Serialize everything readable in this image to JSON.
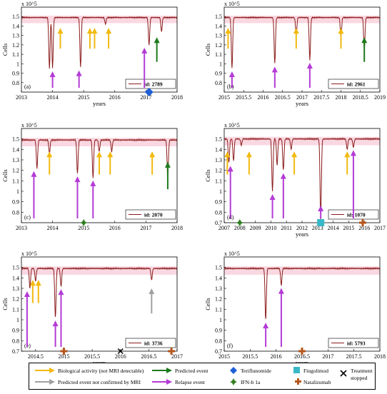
{
  "chart_data": [
    {
      "type": "line",
      "panel_label": "(a)",
      "id_label": "id: 2789",
      "xlabel": "years",
      "ylabel": "Cells",
      "exponent": "x 10^5",
      "xlim": [
        2013,
        2018
      ],
      "ylim": [
        0.7,
        1.6
      ],
      "xticks": [
        2013,
        2014,
        2015,
        2016,
        2017,
        2018
      ],
      "yticks": [
        0.8,
        0.9,
        1.0,
        1.1,
        1.2,
        1.3,
        1.4,
        1.5
      ],
      "baseline": 1.49,
      "dips": [
        [
          2013.9,
          0.95
        ],
        [
          2014.0,
          0.96
        ],
        [
          2014.9,
          0.96
        ],
        [
          2015.7,
          1.42
        ],
        [
          2017.1,
          1.2
        ],
        [
          2017.5,
          1.34
        ]
      ],
      "arrows": [
        {
          "type": "biological",
          "x": 2014.25
        },
        {
          "type": "biological",
          "x": 2015.2
        },
        {
          "type": "biological",
          "x": 2015.35
        },
        {
          "type": "biological",
          "x": 2015.8
        },
        {
          "type": "relapse",
          "x": 2014.0
        },
        {
          "type": "relapse",
          "x": 2014.85
        },
        {
          "type": "relapse",
          "x": 2016.95
        },
        {
          "type": "predicted",
          "x": 2017.35
        }
      ],
      "treatments": [
        {
          "type": "teriflunomide",
          "x": 2017.1
        }
      ]
    },
    {
      "type": "line",
      "panel_label": "(b)",
      "id_label": "id: 2961",
      "xlabel": "years",
      "ylabel": "Cells",
      "exponent": "x 10^5",
      "xlim": [
        2015,
        2019
      ],
      "ylim": [
        0.7,
        1.6
      ],
      "xticks": [
        2015,
        2015.5,
        2016,
        2016.5,
        2017,
        2017.5,
        2018,
        2018.5,
        2019
      ],
      "yticks": [
        0.8,
        0.9,
        1.0,
        1.1,
        1.2,
        1.3,
        1.4,
        1.5
      ],
      "baseline": 1.49,
      "dips": [
        [
          2015.2,
          0.95
        ],
        [
          2016.3,
          1.0
        ],
        [
          2016.85,
          1.3
        ],
        [
          2017.2,
          1.04
        ],
        [
          2018.0,
          1.27
        ],
        [
          2018.6,
          1.14
        ]
      ],
      "arrows": [
        {
          "type": "biological",
          "x": 2015.1
        },
        {
          "type": "biological",
          "x": 2016.85
        },
        {
          "type": "biological",
          "x": 2018.0
        },
        {
          "type": "relapse",
          "x": 2015.2
        },
        {
          "type": "relapse",
          "x": 2016.3
        },
        {
          "type": "relapse",
          "x": 2017.2
        },
        {
          "type": "predicted",
          "x": 2018.6
        }
      ],
      "treatments": []
    },
    {
      "type": "line",
      "panel_label": "(c)",
      "id_label": "id: 2070",
      "xlabel": "",
      "ylabel": "Cells",
      "exponent": "x 10^5",
      "xlim": [
        2013,
        2018
      ],
      "ylim": [
        0.7,
        1.6
      ],
      "xticks": [
        2013,
        2014,
        2015,
        2016,
        2017,
        2018
      ],
      "yticks": [
        0.8,
        0.9,
        1.0,
        1.1,
        1.2,
        1.3,
        1.4,
        1.5
      ],
      "baseline": 1.49,
      "dips": [
        [
          2013.5,
          1.22
        ],
        [
          2013.9,
          1.36
        ],
        [
          2014.8,
          1.17
        ],
        [
          2015.3,
          1.13
        ],
        [
          2015.5,
          1.38
        ],
        [
          2015.9,
          1.38
        ],
        [
          2017.7,
          1.13
        ]
      ],
      "arrows": [
        {
          "type": "biological",
          "x": 2013.9
        },
        {
          "type": "biological",
          "x": 2015.5
        },
        {
          "type": "biological",
          "x": 2015.85
        },
        {
          "type": "biological",
          "x": 2017.2
        },
        {
          "type": "relapse",
          "x": 2013.4
        },
        {
          "type": "relapse",
          "x": 2014.8
        },
        {
          "type": "relapse",
          "x": 2015.3
        },
        {
          "type": "predicted",
          "x": 2017.7
        }
      ],
      "treatments": [
        {
          "type": "ifn",
          "x": 2015.0
        }
      ]
    },
    {
      "type": "line",
      "panel_label": "(d)",
      "id_label": "id: 1070",
      "xlabel": "years",
      "ylabel": "Cells",
      "exponent": "x 10^5",
      "xlim": [
        2007,
        2017
      ],
      "ylim": [
        0.7,
        1.6
      ],
      "xticks": [
        2007,
        2008,
        2009,
        2010,
        2011,
        2012,
        2013,
        2014,
        2015,
        2016,
        2017
      ],
      "yticks": [
        0.7,
        0.8,
        0.9,
        1.0,
        1.1,
        1.2,
        1.3,
        1.4,
        1.5
      ],
      "baseline": 1.5,
      "dips": [
        [
          2007.3,
          1.27
        ],
        [
          2007.6,
          1.29
        ],
        [
          2008.1,
          1.44
        ],
        [
          2010.1,
          1.0
        ],
        [
          2010.4,
          1.25
        ],
        [
          2010.8,
          1.2
        ],
        [
          2011.3,
          1.4
        ],
        [
          2013.2,
          0.73
        ],
        [
          2014.9,
          1.4
        ],
        [
          2015.3,
          1.42
        ]
      ],
      "arrows": [
        {
          "type": "biological",
          "x": 2007.2
        },
        {
          "type": "biological",
          "x": 2008.6
        },
        {
          "type": "biological",
          "x": 2011.5
        },
        {
          "type": "biological",
          "x": 2014.9
        },
        {
          "type": "relapse",
          "x": 2007.4
        },
        {
          "type": "relapse",
          "x": 2010.1
        },
        {
          "type": "relapse",
          "x": 2010.8
        },
        {
          "type": "relapse",
          "x": 2013.2
        },
        {
          "type": "relapse",
          "x": 2015.3
        }
      ],
      "treatments": [
        {
          "type": "ifn",
          "x": 2008.0
        },
        {
          "type": "fingolimod",
          "x": 2013.2
        },
        {
          "type": "natalizumab",
          "x": 2015.9
        }
      ]
    },
    {
      "type": "line",
      "panel_label": "(e)",
      "id_label": "id: 3736",
      "xlabel": "years",
      "ylabel": "Cells",
      "exponent": "x 10^5",
      "xlim": [
        2014.25,
        2017
      ],
      "ylim": [
        0.7,
        1.6
      ],
      "xticks": [
        2014.5,
        2015,
        2015.5,
        2016,
        2016.5,
        2017
      ],
      "yticks": [
        0.7,
        0.8,
        0.9,
        1.0,
        1.1,
        1.2,
        1.3,
        1.4,
        1.5
      ],
      "baseline": 1.49,
      "dips": [
        [
          2014.4,
          1.3
        ],
        [
          2014.5,
          1.37
        ],
        [
          2014.85,
          1.02
        ],
        [
          2014.95,
          1.32
        ],
        [
          2016.55,
          1.38
        ]
      ],
      "arrows": [
        {
          "type": "biological",
          "x": 2014.45
        },
        {
          "type": "biological",
          "x": 2014.55
        },
        {
          "type": "relapse",
          "x": 2014.35
        },
        {
          "type": "relapse",
          "x": 2014.85
        },
        {
          "type": "relapse",
          "x": 2014.95
        },
        {
          "type": "not_confirmed",
          "x": 2016.55
        }
      ],
      "treatments": [
        {
          "type": "natalizumab",
          "x": 2015.0
        },
        {
          "type": "stopped",
          "x": 2016.0
        },
        {
          "type": "natalizumab",
          "x": 2016.9
        }
      ]
    },
    {
      "type": "line",
      "panel_label": "(f)",
      "id_label": "id: 5793",
      "xlabel": "years",
      "ylabel": "Cells",
      "exponent": "x 10^5",
      "xlim": [
        2015,
        2018
      ],
      "ylim": [
        0.7,
        1.6
      ],
      "xticks": [
        2015,
        2015.5,
        2016,
        2016.5,
        2017,
        2017.5,
        2018
      ],
      "yticks": [
        0.7,
        0.8,
        0.9,
        1.0,
        1.1,
        1.2,
        1.3,
        1.4,
        1.5
      ],
      "baseline": 1.49,
      "dips": [
        [
          2015.8,
          1.0
        ],
        [
          2016.1,
          1.33
        ]
      ],
      "arrows": [
        {
          "type": "relapse",
          "x": 2015.8
        },
        {
          "type": "relapse",
          "x": 2016.1
        }
      ],
      "treatments": [
        {
          "type": "natalizumab",
          "x": 2016.5
        }
      ]
    }
  ],
  "legend": {
    "biological": "Biological activity (not MRI detectable)",
    "not_confirmed": "Predicted event not confirmed by MRI",
    "predicted": "Predicted event",
    "relapse": "Relapse event",
    "teriflunomide": "Teriflunomide",
    "ifn": "IFN-b 1a",
    "fingolimod": "Fingolimod",
    "natalizumab": "Natalizumab",
    "stopped_line1": "Treatment",
    "stopped_line2": "stopped"
  },
  "colors": {
    "line": "#8b1a1a",
    "band": "#f5b8c8",
    "biological": "#f2b90f",
    "relapse": "#b43bd6",
    "predicted": "#1c7a1c",
    "not_confirmed": "#a0a0a0",
    "teriflunomide": "#1f5fd6",
    "ifn": "#2f7f1f",
    "fingolimod": "#38b8c8",
    "natalizumab": "#b5561c",
    "stopped": "#000000"
  }
}
